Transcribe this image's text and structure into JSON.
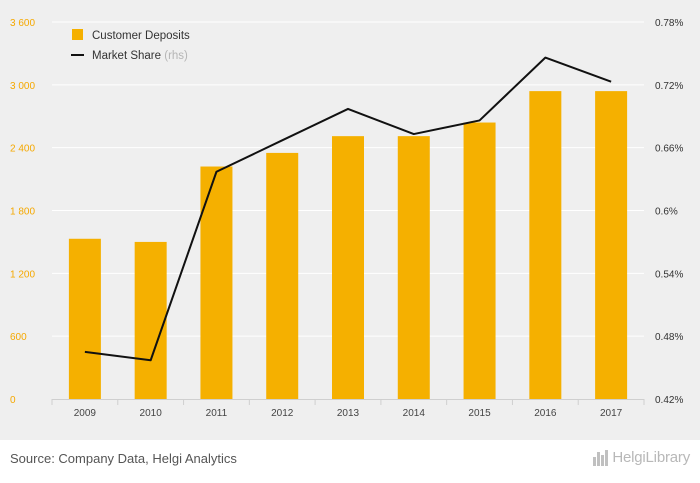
{
  "chart_data": {
    "type": "bar",
    "categories": [
      "2009",
      "2010",
      "2011",
      "2012",
      "2013",
      "2014",
      "2015",
      "2016",
      "2017"
    ],
    "series": [
      {
        "name": "Customer Deposits",
        "type": "bar",
        "axis": "left",
        "color": "#f5b000",
        "values": [
          1530,
          1500,
          2220,
          2350,
          2510,
          2510,
          2640,
          2940,
          2940
        ]
      },
      {
        "name": "Market Share",
        "name_suffix": "(rhs)",
        "type": "line",
        "axis": "right",
        "color": "#111111",
        "values": [
          0.465,
          0.457,
          0.637,
          0.667,
          0.697,
          0.673,
          0.686,
          0.746,
          0.723
        ]
      }
    ],
    "left_axis": {
      "ylim": [
        0,
        3600
      ],
      "ticks": [
        0,
        600,
        1200,
        1800,
        2400,
        3000,
        3600
      ],
      "tick_labels": [
        "0",
        "600",
        "1 200",
        "1 800",
        "2 400",
        "3 000",
        "3 600"
      ],
      "color": "#f5a800"
    },
    "right_axis": {
      "ylim": [
        0.42,
        0.78
      ],
      "ticks": [
        0.42,
        0.48,
        0.54,
        0.6,
        0.66,
        0.72,
        0.78
      ],
      "tick_labels": [
        "0.42%",
        "0.48%",
        "0.54%",
        "0.6%",
        "0.66%",
        "0.72%",
        "0.78%"
      ]
    },
    "grid": true,
    "legend": "top-left"
  },
  "footer": {
    "source": "Source: Company Data, Helgi Analytics",
    "brand": "HelgiLibrary"
  }
}
